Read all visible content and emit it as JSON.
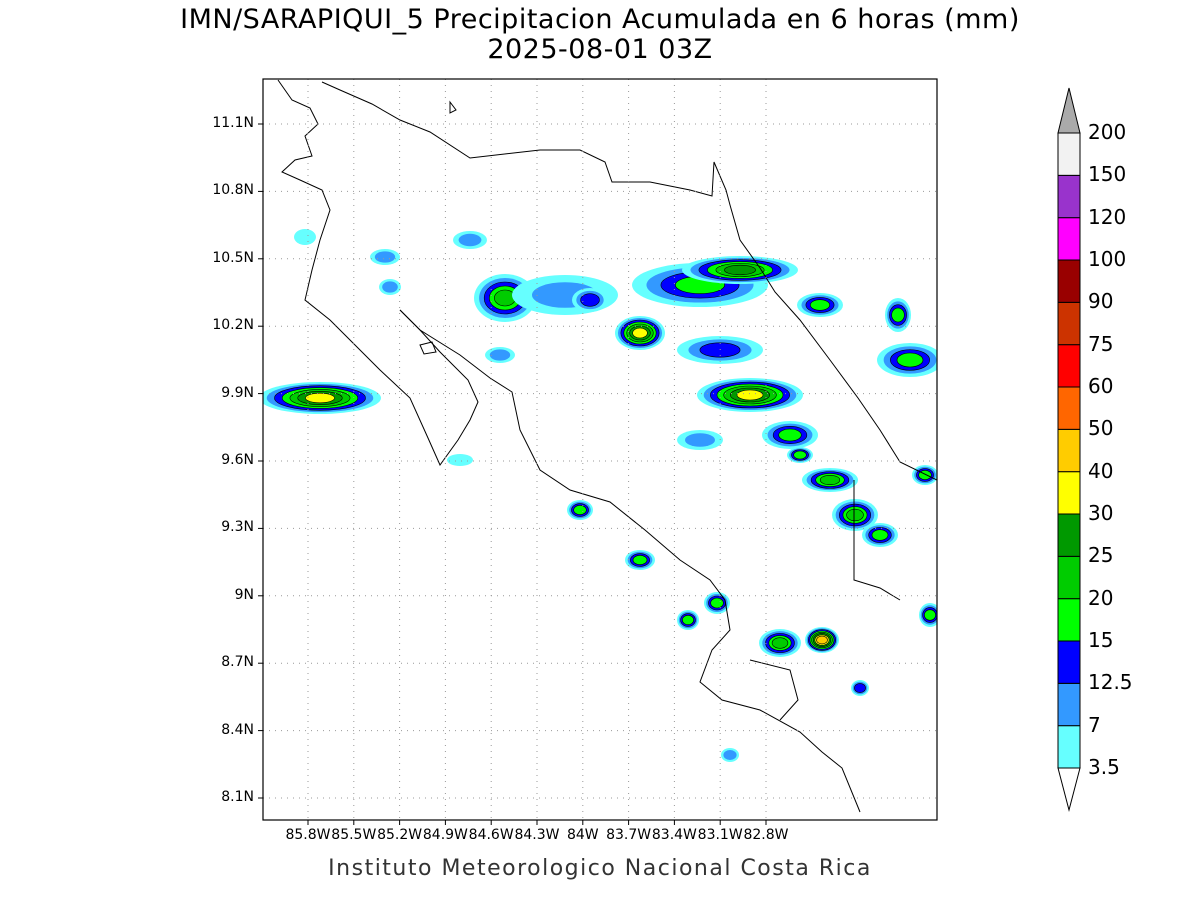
{
  "title": "IMN/SARAPIQUI_5 Precipitacion Acumulada en 6 horas (mm)",
  "subtitle": "2025-08-01 03Z",
  "credit": "Instituto Meteorologico Nacional Costa Rica",
  "map": {
    "lon_ticks": [
      "85.8W",
      "85.5W",
      "85.2W",
      "84.9W",
      "84.6W",
      "84.3W",
      "84W",
      "83.7W",
      "83.4W",
      "83.1W",
      "82.8W"
    ],
    "lat_ticks": [
      "11.1N",
      "10.8N",
      "10.5N",
      "10.2N",
      "9.9N",
      "9.6N",
      "9.3N",
      "9N",
      "8.7N",
      "8.4N",
      "8.1N"
    ]
  },
  "colorbar": {
    "labels": [
      "3.5",
      "7",
      "12.5",
      "15",
      "20",
      "25",
      "30",
      "40",
      "50",
      "60",
      "75",
      "90",
      "100",
      "120",
      "150",
      "200"
    ],
    "colors": [
      "#66ffff",
      "#3399ff",
      "#0000ff",
      "#00ff00",
      "#00cc00",
      "#009900",
      "#ffff00",
      "#ffcc00",
      "#ff6600",
      "#ff0000",
      "#cc3300",
      "#990000",
      "#ff00ff",
      "#9933cc",
      "#f2f2f2"
    ],
    "over_color": "#aaaaaa"
  }
}
